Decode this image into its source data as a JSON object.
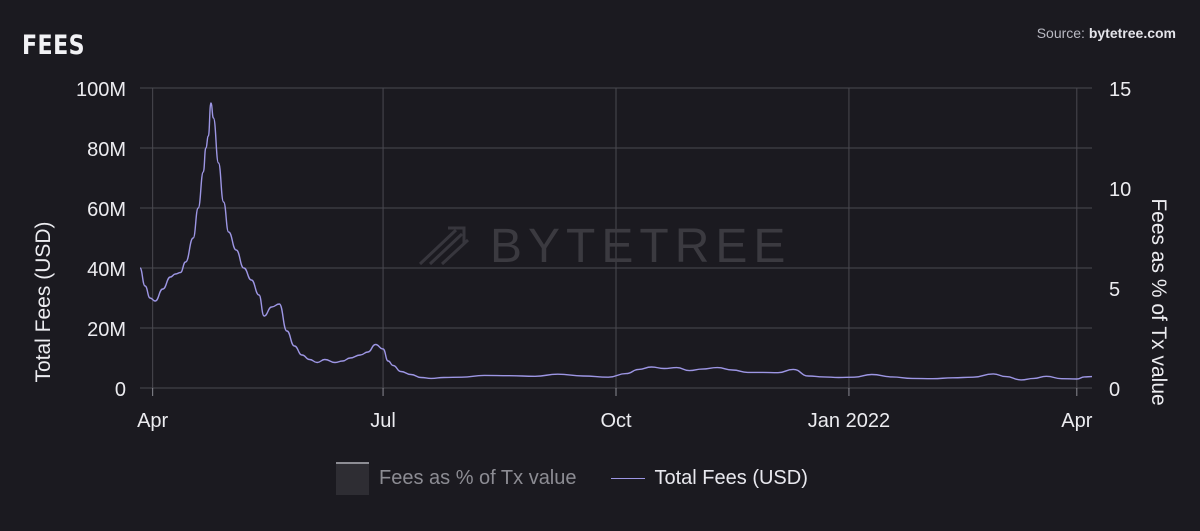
{
  "header": {
    "title": "FEES",
    "source_label": "Source: ",
    "source_name": "bytetree.com"
  },
  "watermark": "BYTETREE",
  "colors": {
    "background": "#1b1a20",
    "grid": "#4a4950",
    "fees_line": "#9d96e4",
    "pct_swatch": "#2e2d33"
  },
  "chart_data": {
    "type": "line",
    "title": "FEES",
    "xlabel": "",
    "ylabel": "Total Fees (USD)",
    "y2label": "Fees as % of Tx value",
    "x_range": [
      "2021-03-27",
      "2022-04-07"
    ],
    "ylim": [
      0,
      100000000
    ],
    "y2lim": [
      0,
      15
    ],
    "x_ticks": [
      {
        "date": "2021-04-01",
        "label": "Apr"
      },
      {
        "date": "2021-07-01",
        "label": "Jul"
      },
      {
        "date": "2021-10-01",
        "label": "Oct"
      },
      {
        "date": "2022-01-01",
        "label": "Jan 2022"
      },
      {
        "date": "2022-04-01",
        "label": "Apr"
      }
    ],
    "y_ticks": [
      {
        "value": 0,
        "label": "0"
      },
      {
        "value": 20000000,
        "label": "20M"
      },
      {
        "value": 40000000,
        "label": "40M"
      },
      {
        "value": 60000000,
        "label": "60M"
      },
      {
        "value": 80000000,
        "label": "80M"
      },
      {
        "value": 100000000,
        "label": "100M"
      }
    ],
    "y2_ticks": [
      {
        "value": 0,
        "label": "0"
      },
      {
        "value": 5,
        "label": "5"
      },
      {
        "value": 10,
        "label": "10"
      },
      {
        "value": 15,
        "label": "15"
      }
    ],
    "grid": true,
    "legend_position": "bottom",
    "series": [
      {
        "name": "Fees as % of Tx value",
        "axis": "right",
        "values": []
      },
      {
        "name": "Total Fees (USD)",
        "axis": "left",
        "x": [
          "2021-03-27",
          "2021-03-29",
          "2021-03-31",
          "2021-04-02",
          "2021-04-05",
          "2021-04-08",
          "2021-04-10",
          "2021-04-12",
          "2021-04-14",
          "2021-04-17",
          "2021-04-19",
          "2021-04-21",
          "2021-04-22",
          "2021-04-23",
          "2021-04-24",
          "2021-04-25",
          "2021-04-27",
          "2021-04-29",
          "2021-05-01",
          "2021-05-04",
          "2021-05-07",
          "2021-05-10",
          "2021-05-13",
          "2021-05-15",
          "2021-05-18",
          "2021-05-21",
          "2021-05-24",
          "2021-05-27",
          "2021-05-30",
          "2021-06-02",
          "2021-06-05",
          "2021-06-08",
          "2021-06-12",
          "2021-06-15",
          "2021-06-18",
          "2021-06-22",
          "2021-06-25",
          "2021-06-28",
          "2021-07-01",
          "2021-07-03",
          "2021-07-05",
          "2021-07-08",
          "2021-07-12",
          "2021-07-16",
          "2021-07-20",
          "2021-07-25",
          "2021-08-01",
          "2021-08-10",
          "2021-08-20",
          "2021-08-30",
          "2021-09-08",
          "2021-09-18",
          "2021-09-28",
          "2021-10-05",
          "2021-10-10",
          "2021-10-15",
          "2021-10-20",
          "2021-10-25",
          "2021-10-30",
          "2021-11-04",
          "2021-11-10",
          "2021-11-16",
          "2021-11-22",
          "2021-11-28",
          "2021-12-04",
          "2021-12-10",
          "2021-12-16",
          "2021-12-22",
          "2021-12-28",
          "2022-01-03",
          "2022-01-10",
          "2022-01-18",
          "2022-01-26",
          "2022-02-03",
          "2022-02-11",
          "2022-02-19",
          "2022-02-27",
          "2022-03-04",
          "2022-03-10",
          "2022-03-15",
          "2022-03-20",
          "2022-03-26",
          "2022-04-01",
          "2022-04-04",
          "2022-04-07"
        ],
        "values": [
          40000000,
          34000000,
          30000000,
          29000000,
          33000000,
          37000000,
          38000000,
          38500000,
          42000000,
          50000000,
          60000000,
          72000000,
          80000000,
          84000000,
          95000000,
          90000000,
          75000000,
          62000000,
          52000000,
          46000000,
          40000000,
          36000000,
          31000000,
          24000000,
          27000000,
          28000000,
          19000000,
          14000000,
          11000000,
          9500000,
          8500000,
          9500000,
          8500000,
          9000000,
          10000000,
          11000000,
          12000000,
          14500000,
          13000000,
          9000000,
          7500000,
          5500000,
          4500000,
          3500000,
          3200000,
          3500000,
          3600000,
          4200000,
          4100000,
          3900000,
          4600000,
          4000000,
          3600000,
          4800000,
          6200000,
          7000000,
          6500000,
          6800000,
          5800000,
          6300000,
          6800000,
          6000000,
          5200000,
          5200000,
          5100000,
          6200000,
          4000000,
          3700000,
          3500000,
          3600000,
          4500000,
          3700000,
          3200000,
          3100000,
          3400000,
          3600000,
          4700000,
          3800000,
          2700000,
          3200000,
          3900000,
          3100000,
          3000000,
          3700000,
          3800000
        ]
      }
    ]
  }
}
